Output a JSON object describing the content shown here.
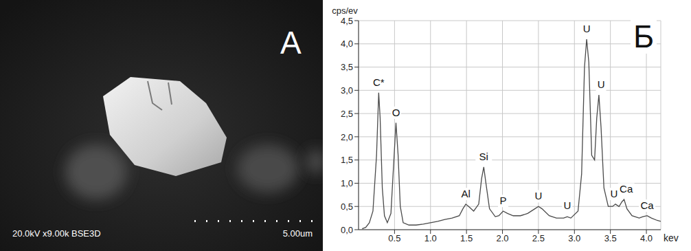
{
  "image_panel": {
    "label": "A",
    "caption": "20.0kV x9.00k BSE3D",
    "scale_bar": "5.00um"
  },
  "chart_data": {
    "type": "line",
    "panel_label": "Б",
    "x_label": "kev",
    "y_label": "cps/ev",
    "x": [
      0.05,
      0.1,
      0.15,
      0.2,
      0.25,
      0.28,
      0.3,
      0.33,
      0.36,
      0.4,
      0.45,
      0.48,
      0.52,
      0.55,
      0.58,
      0.62,
      0.7,
      0.8,
      0.9,
      1.0,
      1.1,
      1.2,
      1.3,
      1.4,
      1.45,
      1.49,
      1.53,
      1.6,
      1.67,
      1.71,
      1.74,
      1.77,
      1.82,
      1.9,
      1.95,
      2.01,
      2.07,
      2.15,
      2.25,
      2.35,
      2.45,
      2.5,
      2.55,
      2.65,
      2.75,
      2.85,
      2.9,
      2.95,
      3.05,
      3.1,
      3.14,
      3.17,
      3.2,
      3.24,
      3.28,
      3.31,
      3.34,
      3.37,
      3.41,
      3.47,
      3.53,
      3.57,
      3.62,
      3.66,
      3.69,
      3.73,
      3.8,
      3.9,
      3.95,
      4.01,
      4.07,
      4.15,
      4.2
    ],
    "values": [
      0.02,
      0.05,
      0.15,
      0.4,
      1.6,
      2.95,
      2.4,
      0.9,
      0.3,
      0.15,
      0.35,
      1.2,
      2.3,
      1.6,
      0.5,
      0.15,
      0.1,
      0.1,
      0.12,
      0.15,
      0.18,
      0.22,
      0.25,
      0.3,
      0.45,
      0.55,
      0.5,
      0.4,
      0.55,
      1.1,
      1.35,
      1.0,
      0.45,
      0.28,
      0.3,
      0.4,
      0.35,
      0.3,
      0.3,
      0.35,
      0.45,
      0.5,
      0.45,
      0.3,
      0.25,
      0.25,
      0.28,
      0.25,
      0.4,
      1.2,
      3.5,
      4.1,
      3.6,
      1.6,
      1.5,
      2.4,
      2.9,
      2.2,
      0.9,
      0.5,
      0.5,
      0.55,
      0.5,
      0.6,
      0.65,
      0.45,
      0.3,
      0.25,
      0.28,
      0.3,
      0.25,
      0.2,
      0.18
    ],
    "color": "#4a4a4a",
    "xlim": [
      0,
      4.2
    ],
    "xticks": [
      0.5,
      {
        "value": 1,
        "label": "1.0"
      },
      1.5,
      {
        "value": 2,
        "label": "2.0"
      },
      2.5,
      {
        "value": 3,
        "label": "3.0"
      },
      3.5,
      {
        "value": 4,
        "label": "4.0"
      }
    ],
    "ylim": [
      0,
      4.5
    ],
    "yticks": [
      {
        "value": 0,
        "label": "0,0"
      },
      {
        "value": 0.5,
        "label": "0,5"
      },
      {
        "value": 1,
        "label": "1,0"
      },
      {
        "value": 1.5,
        "label": "1,5"
      },
      {
        "value": 2,
        "label": "2,0"
      },
      {
        "value": 2.5,
        "label": "2,5"
      },
      {
        "value": 3,
        "label": "3,0"
      },
      {
        "value": 3.5,
        "label": "3,5"
      },
      {
        "value": 4,
        "label": "4,0"
      },
      {
        "value": 4.5,
        "label": "4,5"
      }
    ],
    "grid": true,
    "annotations": [
      {
        "text": "C*",
        "x": 0.28,
        "y": 3.05
      },
      {
        "text": "O",
        "x": 0.52,
        "y": 2.4
      },
      {
        "text": "Al",
        "x": 1.49,
        "y": 0.65
      },
      {
        "text": "Si",
        "x": 1.74,
        "y": 1.45
      },
      {
        "text": "P",
        "x": 2.01,
        "y": 0.5
      },
      {
        "text": "U",
        "x": 2.5,
        "y": 0.6
      },
      {
        "text": "U",
        "x": 2.9,
        "y": 0.4
      },
      {
        "text": "U",
        "x": 3.17,
        "y": 4.2
      },
      {
        "text": "U",
        "x": 3.37,
        "y": 3.0
      },
      {
        "text": "U",
        "x": 3.55,
        "y": 0.65
      },
      {
        "text": "Ca",
        "x": 3.72,
        "y": 0.75
      },
      {
        "text": "Ca",
        "x": 4.01,
        "y": 0.4
      }
    ]
  }
}
